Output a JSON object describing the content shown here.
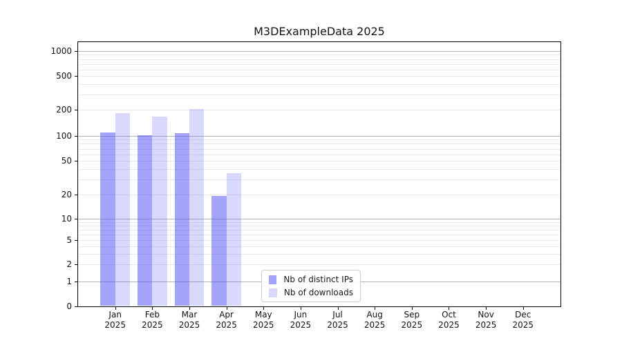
{
  "title": "M3DExampleData 2025",
  "colors": {
    "bar_ips": "rgba(80,80,245,0.52)",
    "bar_downloads": "rgba(80,80,245,0.22)",
    "grid_major": "#b3b3b3",
    "grid_minor": "#e9e9e9",
    "spine": "#000000",
    "legend_border": "#cccccc",
    "text": "#111111"
  },
  "chart_data": {
    "type": "bar",
    "title": "M3DExampleData 2025",
    "yscale": "symlog",
    "ylim": [
      0,
      1400
    ],
    "grid": "both",
    "legend_position": "lower center",
    "y_ticks": [
      0,
      1,
      2,
      5,
      10,
      20,
      50,
      100,
      200,
      500,
      1000
    ],
    "categories": [
      "Jan 2025",
      "Feb 2025",
      "Mar 2025",
      "Apr 2025",
      "May 2025",
      "Jun 2025",
      "Jul 2025",
      "Aug 2025",
      "Sep 2025",
      "Oct 2025",
      "Nov 2025",
      "Dec 2025"
    ],
    "series": [
      {
        "name": "Nb of distinct IPs",
        "values": [
          110,
          101,
          108,
          19,
          0,
          0,
          0,
          0,
          0,
          0,
          0,
          0
        ]
      },
      {
        "name": "Nb of downloads",
        "values": [
          183,
          166,
          206,
          36,
          0,
          0,
          0,
          0,
          0,
          0,
          0,
          0
        ]
      }
    ]
  },
  "y_axis": {
    "tick_labels": [
      "0",
      "1",
      "2",
      "5",
      "10",
      "20",
      "50",
      "100",
      "200",
      "500",
      "1000"
    ]
  },
  "x_axis": {
    "labels": [
      {
        "month": "Jan",
        "year": "2025"
      },
      {
        "month": "Feb",
        "year": "2025"
      },
      {
        "month": "Mar",
        "year": "2025"
      },
      {
        "month": "Apr",
        "year": "2025"
      },
      {
        "month": "May",
        "year": "2025"
      },
      {
        "month": "Jun",
        "year": "2025"
      },
      {
        "month": "Jul",
        "year": "2025"
      },
      {
        "month": "Aug",
        "year": "2025"
      },
      {
        "month": "Sep",
        "year": "2025"
      },
      {
        "month": "Oct",
        "year": "2025"
      },
      {
        "month": "Nov",
        "year": "2025"
      },
      {
        "month": "Dec",
        "year": "2025"
      }
    ]
  },
  "legend": {
    "items": [
      {
        "label": "Nb of distinct IPs"
      },
      {
        "label": "Nb of downloads"
      }
    ]
  }
}
